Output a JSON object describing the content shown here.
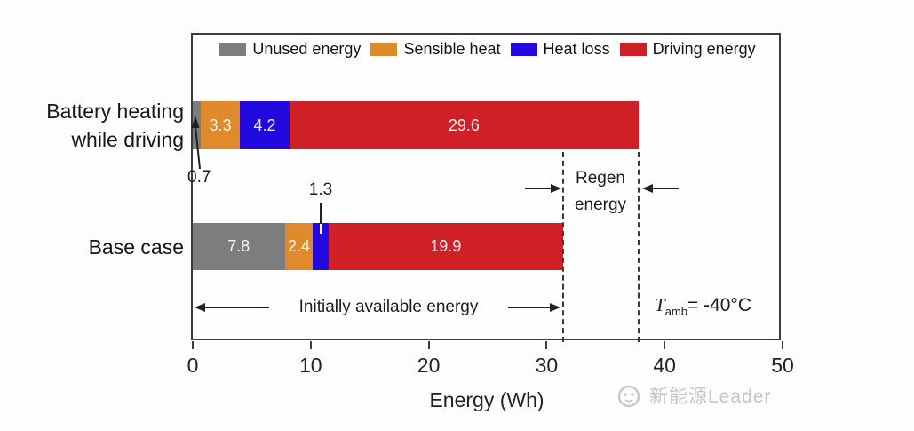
{
  "chart_data": {
    "type": "bar",
    "orientation": "horizontal-stacked",
    "xlabel": "Energy (Wh)",
    "xlim": [
      0,
      50
    ],
    "x_ticks": [
      "0",
      "10",
      "20",
      "30",
      "40",
      "50"
    ],
    "legend_position": "top-inside",
    "series": [
      {
        "name": "Unused energy",
        "color": "#7d7d7d"
      },
      {
        "name": "Sensible heat",
        "color": "#df8a2b"
      },
      {
        "name": "Heat loss",
        "color": "#2209e0"
      },
      {
        "name": "Driving energy",
        "color": "#cf2026"
      }
    ],
    "rows": [
      {
        "category": "Battery heating while driving",
        "label_lines": [
          "Battery heating",
          "while driving"
        ],
        "values": [
          0.7,
          3.3,
          4.2,
          29.6
        ],
        "total": 37.8
      },
      {
        "category": "Base case",
        "label_lines": [
          "Base case"
        ],
        "values": [
          7.8,
          2.4,
          1.3,
          19.9
        ],
        "total": 31.4
      }
    ],
    "regen_energy_span": [
      31.4,
      37.8
    ]
  },
  "annotations": {
    "unused_top_label": "0.7",
    "heat_loss_base_label": "1.3",
    "regen_line1": "Regen",
    "regen_line2": "energy",
    "initially_label": "Initially available energy",
    "tamb_t": "T",
    "tamb_sub": "amb",
    "tamb_value": "= -40°C"
  },
  "axis": {
    "title": "Energy (Wh)"
  },
  "watermark": {
    "text": "新能源Leader"
  }
}
